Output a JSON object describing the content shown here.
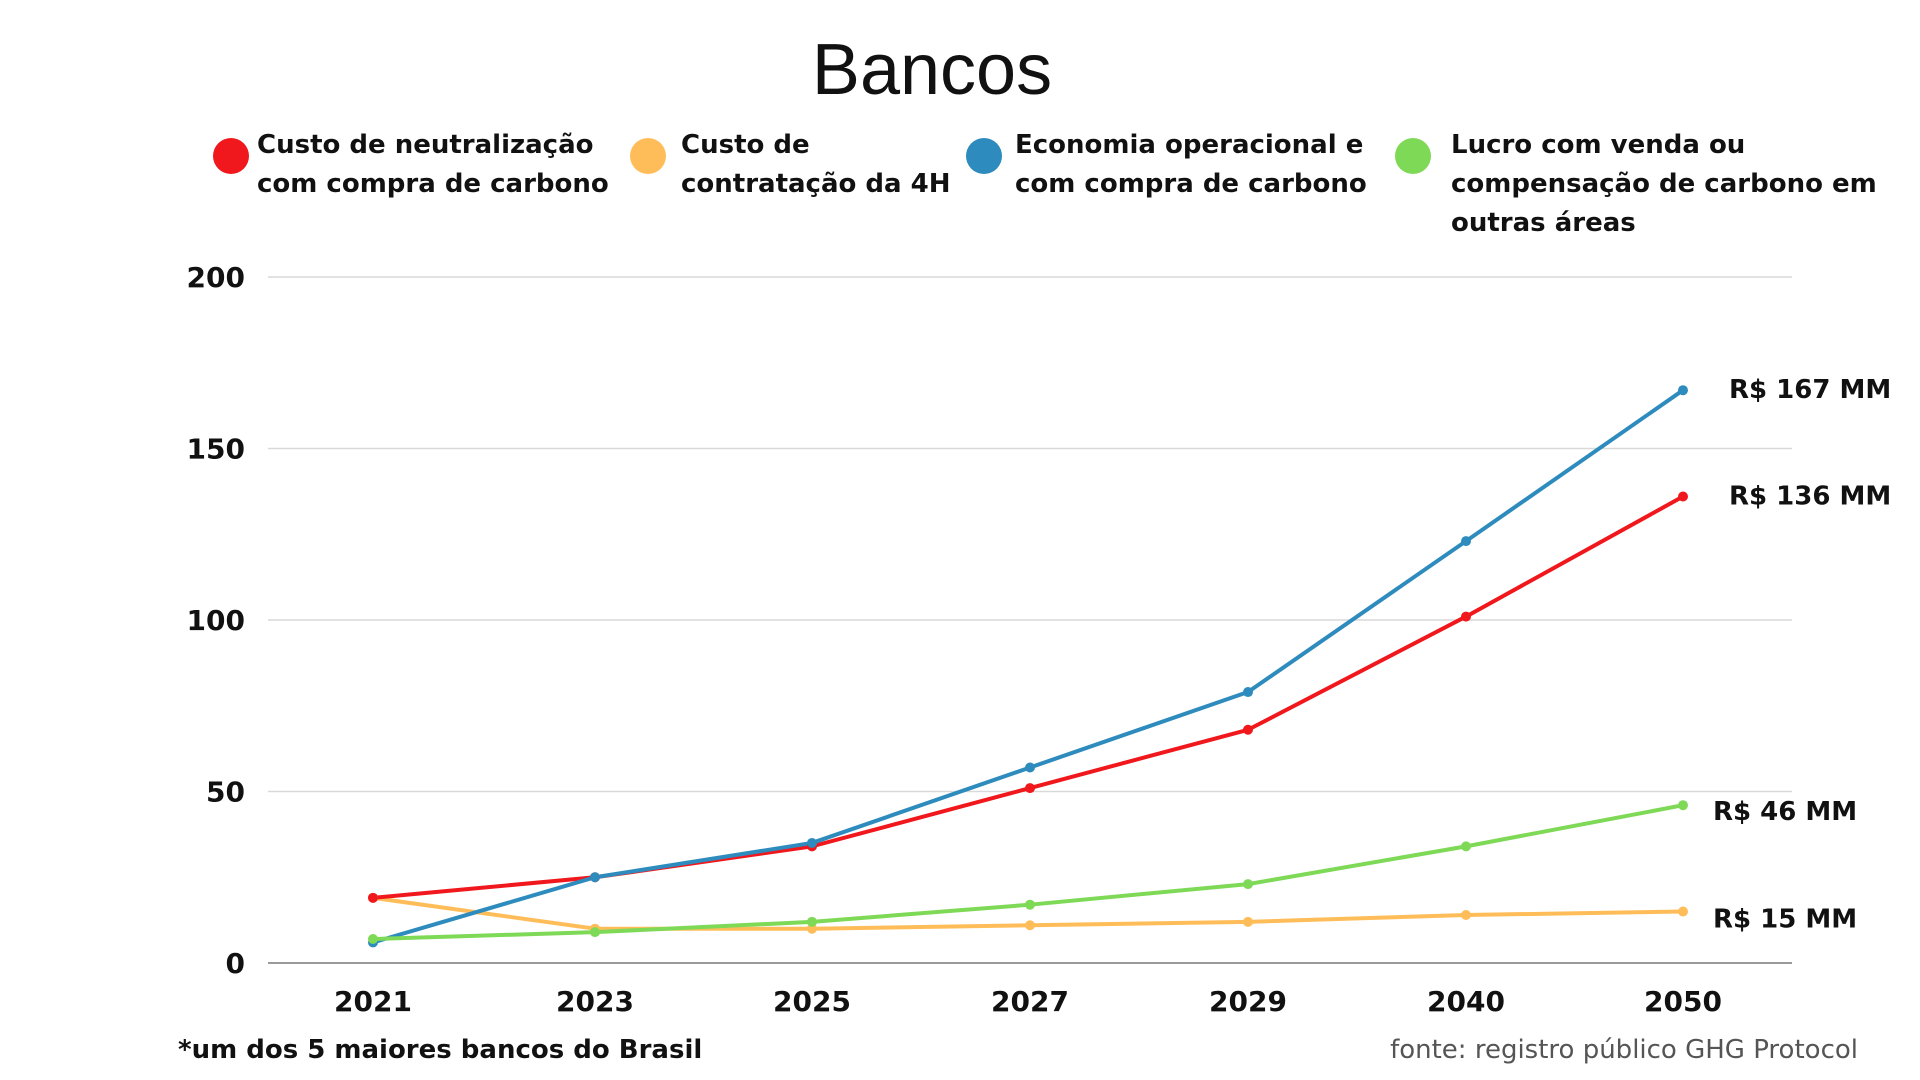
{
  "chart_data": {
    "type": "line",
    "title": "Bancos",
    "categories": [
      "2021",
      "2023",
      "2025",
      "2027",
      "2029",
      "2040",
      "2050"
    ],
    "ylim": [
      0,
      200
    ],
    "yticks": [
      0,
      50,
      100,
      150,
      200
    ],
    "grid": true,
    "legend_position": "top",
    "series": [
      {
        "name": "Custo de neutralização com compra de carbono",
        "legend_lines": [
          "Custo de neutralização",
          "com compra de carbono"
        ],
        "color": "#f0181c",
        "values": [
          19,
          25,
          34,
          51,
          68,
          101,
          136
        ],
        "end_label": "R$ 136 MM"
      },
      {
        "name": "Custo de contratação da 4H",
        "legend_lines": [
          "Custo de",
          "contratação da 4H"
        ],
        "color": "#ffbd59",
        "values": [
          19,
          10,
          10,
          11,
          12,
          14,
          15
        ],
        "end_label": "R$ 15 MM"
      },
      {
        "name": "Economia operacional e com compra de carbono",
        "legend_lines": [
          "Economia operacional e",
          "com compra de carbono"
        ],
        "color": "#2e8bbd",
        "values": [
          6,
          25,
          35,
          57,
          79,
          123,
          167
        ],
        "end_label": "R$ 167 MM"
      },
      {
        "name": "Lucro com venda ou compensação de carbono em outras áreas",
        "legend_lines": [
          "Lucro com venda ou",
          "compensação de carbono em",
          "outras áreas"
        ],
        "color": "#7ed957",
        "values": [
          7,
          9,
          12,
          17,
          23,
          34,
          46
        ],
        "end_label": "R$ 46 MM"
      }
    ]
  },
  "footnote": "*um dos 5 maiores bancos do Brasil",
  "source": "fonte: registro público GHG Protocol"
}
